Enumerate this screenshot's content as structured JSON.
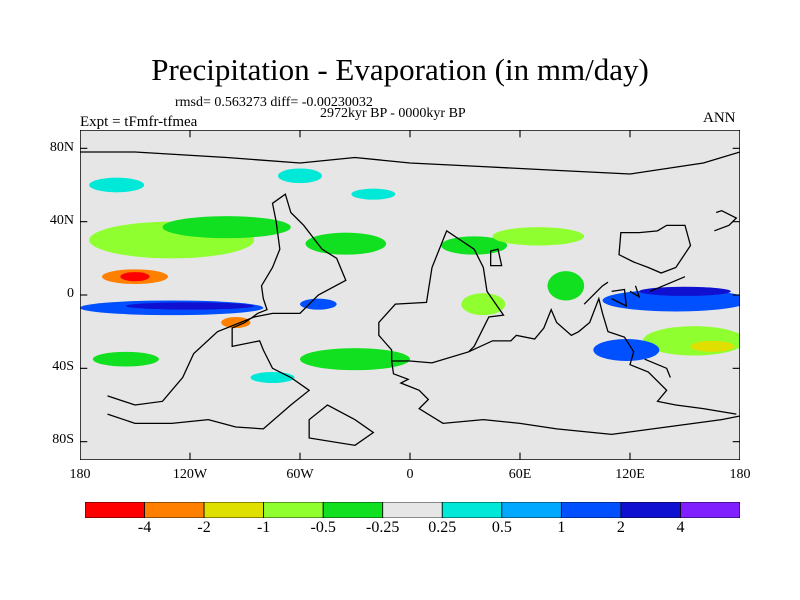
{
  "title": "Precipitation - Evaporation (in mm/day)",
  "stats": "rmsd= 0.563273 diff= -0.00230032",
  "period": "2972kyr BP - 0000kyr BP",
  "expt": "Expt = tFmfr-tfmea",
  "season": "ANN",
  "y_ticks": [
    "80N",
    "40N",
    "0",
    "40S",
    "80S"
  ],
  "x_ticks": [
    "180",
    "120W",
    "60W",
    "0",
    "60E",
    "120E",
    "180"
  ],
  "colorbar": {
    "colors": [
      "#ff0000",
      "#ff8000",
      "#e0e000",
      "#90ff30",
      "#10e020",
      "#e6e6e6",
      "#00e8d8",
      "#00a8ff",
      "#0050ff",
      "#1010d0",
      "#8020ff"
    ],
    "labels": [
      "-4",
      "-2",
      "-1",
      "-0.5",
      "-0.25",
      "0.25",
      "0.5",
      "1",
      "2",
      "4"
    ]
  },
  "colors": {
    "background": "#e6e6e6",
    "coast": "#000000"
  }
}
